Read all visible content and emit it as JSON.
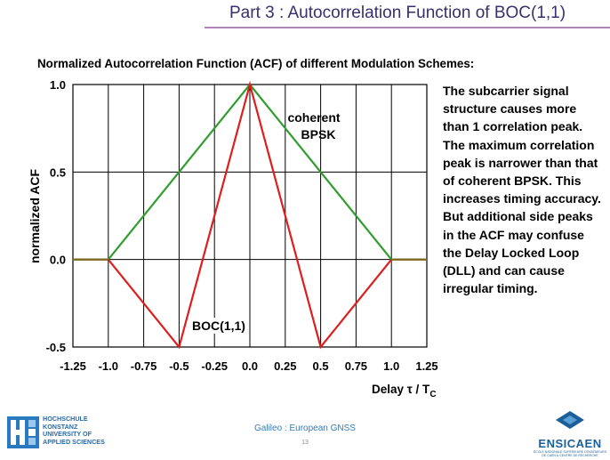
{
  "header": {
    "title": "Part 3 :    Autocorrelation Function of BOC(1,1)"
  },
  "chart_data": {
    "type": "line",
    "title": "Normalized Autocorrelation Function (ACF) of different Modulation Schemes:",
    "xlabel": "Delay τ / T",
    "xlabel_subscript": "C",
    "ylabel": "normalized ACF",
    "xlim": [
      -1.25,
      1.25
    ],
    "ylim": [
      -0.5,
      1.0
    ],
    "x_ticks": [
      "-1.25",
      "-1.0",
      "-0.75",
      "-0.5",
      "-0.25",
      "0.0",
      "0.25",
      "0.5",
      "0.75",
      "1.0",
      "1.25"
    ],
    "x_tick_values": [
      -1.25,
      -1.0,
      -0.75,
      -0.5,
      -0.25,
      0.0,
      0.25,
      0.5,
      0.75,
      1.0,
      1.25
    ],
    "y_ticks": [
      "1.0",
      "0.5",
      "0.0",
      "-0.5"
    ],
    "y_tick_values": [
      1.0,
      0.5,
      0.0,
      -0.5
    ],
    "grid": true,
    "series": [
      {
        "name": "coherent BPSK",
        "color": "#2e9e2e",
        "x": [
          -1.25,
          -1.0,
          0.0,
          1.0,
          1.25
        ],
        "y": [
          0.0,
          0.0,
          1.0,
          0.0,
          0.0
        ]
      },
      {
        "name": "BOC(1,1)",
        "color": "#dd1e1e",
        "x": [
          -1.25,
          -1.0,
          -0.5,
          0.0,
          0.5,
          1.0,
          1.25
        ],
        "y": [
          0.0,
          0.0,
          -0.5,
          1.0,
          -0.5,
          0.0,
          0.0
        ]
      }
    ],
    "baseline_color": "#7a6a1e",
    "annotations": [
      {
        "text_line1": "coherent",
        "text_line2": "BPSK",
        "series": "coherent BPSK"
      },
      {
        "text_line1": "BOC(1,1)",
        "series": "BOC(1,1)"
      }
    ]
  },
  "side_text": "The subcarrier signal structure causes more than 1 correlation peak. The maximum correlation peak is narrower than that of coherent BPSK. This increases timing accuracy. But additional side peaks in the ACF may confuse the Delay Locked Loop (DLL) and can cause irregular timing.",
  "footer": {
    "center": "Galileo : European GNSS",
    "page": "13",
    "logo_left_lines": [
      "HOCHSCHULE",
      "KONSTANZ",
      "UNIVERSITY OF",
      "APPLIED SCIENCES"
    ],
    "logo_right_word": "ENSICAEN",
    "logo_right_sub": "ÉCOLE NATIONALE SUPÉRIEURE D'INGÉNIEURS DE CAEN & CENTRE DE RECHERCHE"
  }
}
